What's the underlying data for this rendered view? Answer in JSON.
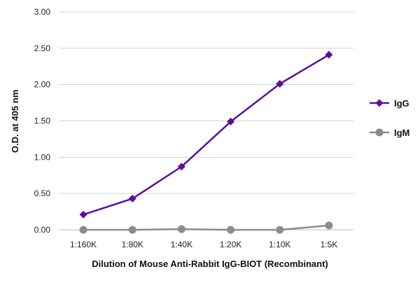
{
  "chart_data": {
    "type": "line",
    "categories": [
      "1:160K",
      "1:80K",
      "1:40K",
      "1:20K",
      "1:10K",
      "1:5K"
    ],
    "series": [
      {
        "name": "IgG",
        "values": [
          0.21,
          0.43,
          0.87,
          1.49,
          2.01,
          2.41
        ],
        "color": "#5a0fa0",
        "marker": "diamond"
      },
      {
        "name": "IgM",
        "values": [
          0.0,
          0.0,
          0.01,
          0.0,
          0.0,
          0.06
        ],
        "color": "#8c8c8c",
        "marker": "circle"
      }
    ],
    "xlabel": "Dilution of Mouse Anti-Rabbit IgG-BIOT (Recombinant)",
    "ylabel": "O.D. at 405 nm",
    "ylim": [
      0,
      3
    ],
    "yticks": [
      "0.00",
      "0.50",
      "1.00",
      "1.50",
      "2.00",
      "2.50",
      "3.00"
    ],
    "grid": true,
    "legend": "right"
  }
}
